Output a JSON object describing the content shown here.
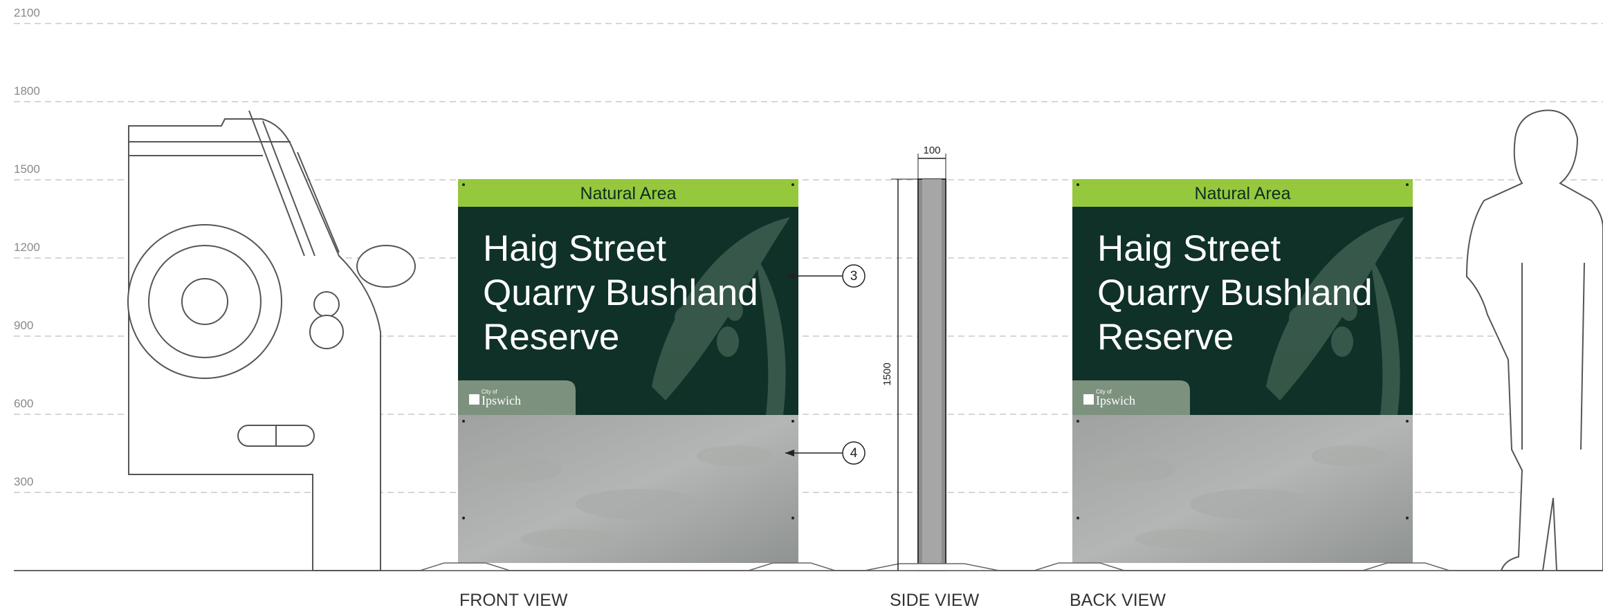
{
  "height_marks": [
    "2100",
    "1800",
    "1500",
    "1200",
    "900",
    "600",
    "300"
  ],
  "views": [
    {
      "label": "FRONT VIEW",
      "sign": {
        "header": "Natural Area",
        "title_lines": [
          "Haig Street",
          "Quarry Bushland",
          "Reserve"
        ],
        "logo": {
          "small": "City of",
          "name": "Ipswich"
        }
      }
    },
    {
      "label": "SIDE VIEW"
    },
    {
      "label": "BACK VIEW",
      "sign": {
        "header": "Natural Area",
        "title_lines": [
          "Haig Street",
          "Quarry Bushland",
          "Reserve"
        ],
        "logo": {
          "small": "City of",
          "name": "Ipswich"
        }
      }
    }
  ],
  "dimensions": {
    "width": "100",
    "height": "1500"
  },
  "callouts": [
    "3",
    "4"
  ]
}
